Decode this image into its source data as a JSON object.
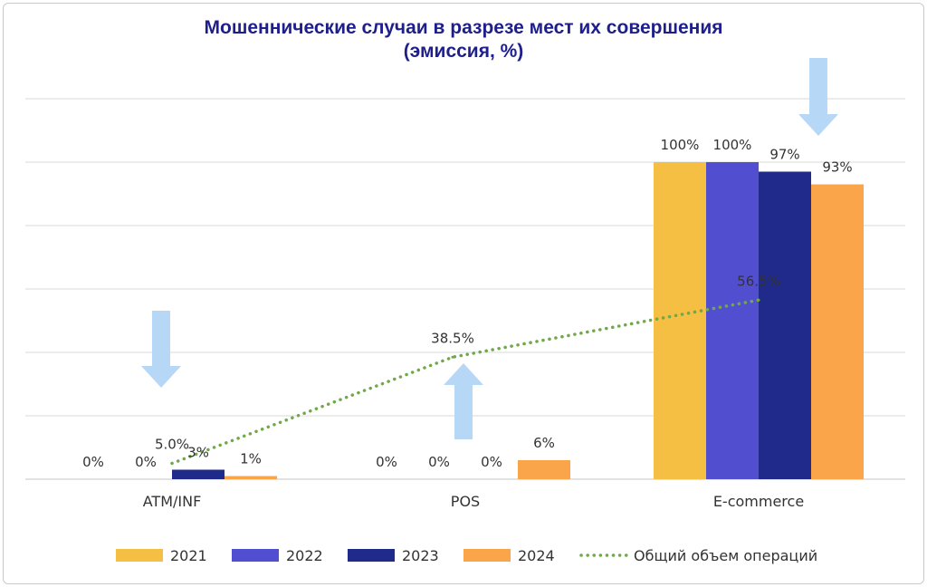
{
  "chart_data": {
    "type": "bar",
    "title": "Мошеннические случаи в разрезе мест их совершения",
    "subtitle": "(эмиссия, %)",
    "categories": [
      "ATM/INF",
      "POS",
      "E-commerce"
    ],
    "series": [
      {
        "name": "2021",
        "color": "#f4bf42",
        "values": [
          0,
          0,
          100
        ],
        "labels": [
          "0%",
          "0%",
          "100%"
        ]
      },
      {
        "name": "2022",
        "color": "#524ed0",
        "values": [
          0,
          0,
          100
        ],
        "labels": [
          "0%",
          "0%",
          "100%"
        ]
      },
      {
        "name": "2023",
        "color": "#1f2a8a",
        "values": [
          3,
          0,
          97
        ],
        "labels": [
          "3%",
          "0%",
          "97%"
        ]
      },
      {
        "name": "2024",
        "color": "#fba54a",
        "values": [
          1,
          6,
          93
        ],
        "labels": [
          "1%",
          "6%",
          "93%"
        ]
      }
    ],
    "line": {
      "name": "Общий объем операций",
      "color": "#70a84a",
      "style": "dotted",
      "values": [
        5.0,
        38.5,
        56.5
      ],
      "labels": [
        "5.0%",
        "38.5%",
        "56.5%"
      ]
    },
    "annotations": [
      {
        "type": "arrow-down",
        "category": "ATM/INF",
        "color": "#b7d7f7"
      },
      {
        "type": "arrow-up",
        "category": "POS",
        "color": "#b7d7f7"
      },
      {
        "type": "arrow-down",
        "category": "E-commerce",
        "color": "#b7d7f7"
      }
    ],
    "ylim": [
      0,
      120
    ],
    "grid": true,
    "legend_position": "bottom"
  }
}
